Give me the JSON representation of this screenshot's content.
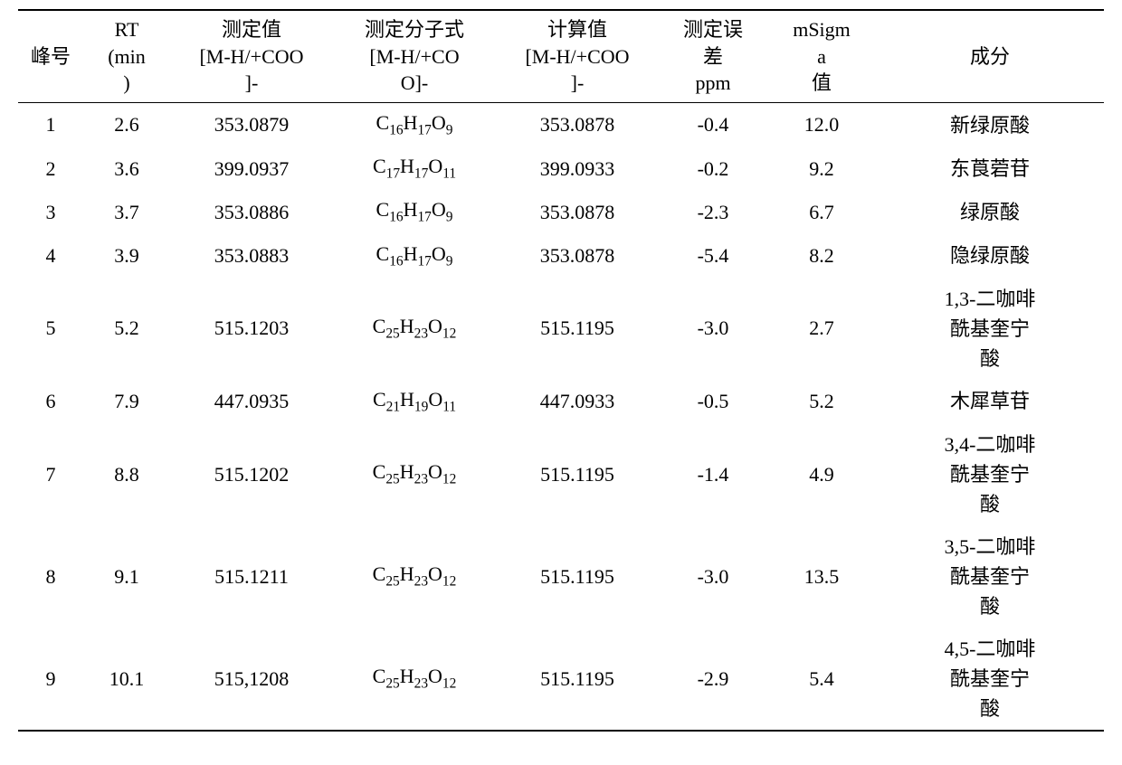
{
  "table": {
    "headers": {
      "peak": "峰号",
      "rt": "RT\n(min\n)",
      "measured": "测定值\n[M-H/+COO\n]-",
      "formula": "测定分子式\n[M-H/+CO\nO]-",
      "calculated": "计算值\n[M-H/+COO\n]-",
      "error": "测定误\n差\nppm",
      "msigma": "mSigm\na\n值",
      "component": "成分"
    },
    "rows": [
      {
        "peak": "1",
        "rt": "2.6",
        "measured": "353.0879",
        "formula_html": "C<sub>16</sub>H<sub>17</sub>O<sub>9</sub>",
        "calculated": "353.0878",
        "error": "-0.4",
        "msigma": "12.0",
        "component": "新绿原酸"
      },
      {
        "peak": "2",
        "rt": "3.6",
        "measured": "399.0937",
        "formula_html": "C<sub>17</sub>H<sub>17</sub>O<sub>11</sub>",
        "calculated": "399.0933",
        "error": "-0.2",
        "msigma": "9.2",
        "component": "东莨菪苷"
      },
      {
        "peak": "3",
        "rt": "3.7",
        "measured": "353.0886",
        "formula_html": "C<sub>16</sub>H<sub>17</sub>O<sub>9</sub>",
        "calculated": "353.0878",
        "error": "-2.3",
        "msigma": "6.7",
        "component": "绿原酸"
      },
      {
        "peak": "4",
        "rt": "3.9",
        "measured": "353.0883",
        "formula_html": "C<sub>16</sub>H<sub>17</sub>O<sub>9</sub>",
        "calculated": "353.0878",
        "error": "-5.4",
        "msigma": "8.2",
        "component": "隐绿原酸"
      },
      {
        "peak": "5",
        "rt": "5.2",
        "measured": "515.1203",
        "formula_html": "C<sub>25</sub>H<sub>23</sub>O<sub>12</sub>",
        "calculated": "515.1195",
        "error": "-3.0",
        "msigma": "2.7",
        "component": "1,3-二咖啡\n酰基奎宁\n酸"
      },
      {
        "peak": "6",
        "rt": "7.9",
        "measured": "447.0935",
        "formula_html": "C<sub>21</sub>H<sub>19</sub>O<sub>11</sub>",
        "calculated": "447.0933",
        "error": "-0.5",
        "msigma": "5.2",
        "component": "木犀草苷"
      },
      {
        "peak": "7",
        "rt": "8.8",
        "measured": "515.1202",
        "formula_html": "C<sub>25</sub>H<sub>23</sub>O<sub>12</sub>",
        "calculated": "515.1195",
        "error": "-1.4",
        "msigma": "4.9",
        "component": "3,4-二咖啡\n酰基奎宁\n酸"
      },
      {
        "peak": "8",
        "rt": "9.1",
        "measured": "515.1211",
        "formula_html": "C<sub>25</sub>H<sub>23</sub>O<sub>12</sub>",
        "calculated": "515.1195",
        "error": "-3.0",
        "msigma": "13.5",
        "component": "3,5-二咖啡\n酰基奎宁\n酸"
      },
      {
        "peak": "9",
        "rt": "10.1",
        "measured": "515,1208",
        "formula_html": "C<sub>25</sub>H<sub>23</sub>O<sub>12</sub>",
        "calculated": "515.1195",
        "error": "-2.9",
        "msigma": "5.4",
        "component": "4,5-二咖啡\n酰基奎宁\n酸"
      }
    ],
    "style": {
      "background_color": "#ffffff",
      "text_color": "#000000",
      "border_color": "#000000",
      "font_size": 22,
      "font_family": "SimSun, Times New Roman, serif",
      "top_border_width": 2,
      "header_bottom_border_width": 1.5,
      "bottom_border_width": 2
    }
  }
}
